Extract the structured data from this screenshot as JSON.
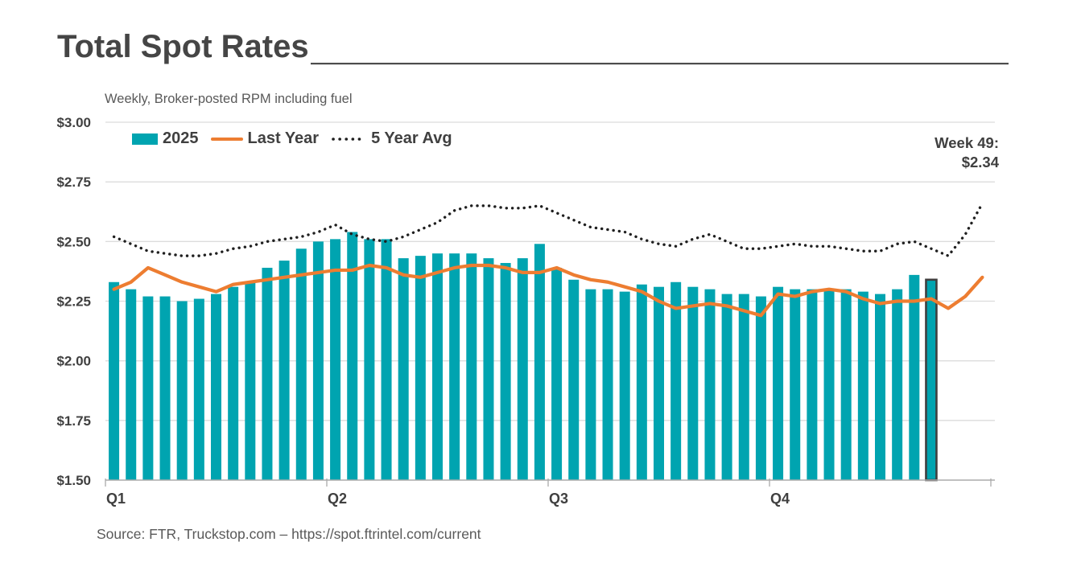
{
  "header": {
    "title": "Total Spot Rates"
  },
  "annotation": {
    "line1": "Week 49:",
    "line2": "$2.34"
  },
  "footer": {
    "source": "Source: FTR, Truckstop.com – https://spot.ftrintel.com/current"
  },
  "colors": {
    "bar_teal": "#00a4b0",
    "last_year_orange": "#ed7d31",
    "five_year_avg_black": "#1f1f1f",
    "highlight_border": "#3f3f3f",
    "grid": "#dcdcdc",
    "axis": "#ababab",
    "title_text": "#454545",
    "muted_text": "#595959"
  },
  "chart_data": {
    "type": "bar+line combo",
    "title": "Total Spot Rates",
    "subtitle": "Weekly, Broker-posted RPM including fuel",
    "legend_position": "top-left inside plot",
    "grid": "horizontal only",
    "x_axis": {
      "unit": "week",
      "weeks_total": 52,
      "tick_labels": [
        "Q1",
        "Q2",
        "Q3",
        "Q4"
      ],
      "quarter_boundary_weeks": [
        0,
        13,
        26,
        39,
        52
      ]
    },
    "y_axis": {
      "min": 1.5,
      "max": 3.0,
      "step": 0.25,
      "tick_values": [
        3.0,
        2.75,
        2.5,
        2.25,
        2.0,
        1.75,
        1.5
      ],
      "tick_labels": [
        "$3.00",
        "$2.75",
        "$2.50",
        "$2.25",
        "$2.00",
        "$1.75",
        "$1.50"
      ]
    },
    "series": [
      {
        "name": "2025",
        "type": "bar",
        "color_key": "bar_teal",
        "values": [
          2.33,
          2.3,
          2.27,
          2.27,
          2.25,
          2.26,
          2.28,
          2.31,
          2.33,
          2.39,
          2.42,
          2.47,
          2.5,
          2.51,
          2.54,
          2.51,
          2.51,
          2.43,
          2.44,
          2.45,
          2.45,
          2.45,
          2.43,
          2.41,
          2.43,
          2.49,
          2.39,
          2.34,
          2.3,
          2.3,
          2.29,
          2.32,
          2.31,
          2.33,
          2.31,
          2.3,
          2.28,
          2.28,
          2.27,
          2.31,
          2.3,
          2.3,
          2.3,
          2.3,
          2.29,
          2.28,
          2.3,
          2.36,
          2.34
        ]
      },
      {
        "name": "Last Year",
        "type": "line",
        "color_key": "last_year_orange",
        "values": [
          2.3,
          2.33,
          2.39,
          2.36,
          2.33,
          2.31,
          2.29,
          2.32,
          2.33,
          2.34,
          2.35,
          2.36,
          2.37,
          2.38,
          2.38,
          2.4,
          2.39,
          2.36,
          2.35,
          2.37,
          2.39,
          2.4,
          2.4,
          2.39,
          2.37,
          2.37,
          2.39,
          2.36,
          2.34,
          2.33,
          2.31,
          2.29,
          2.25,
          2.22,
          2.23,
          2.24,
          2.23,
          2.21,
          2.19,
          2.28,
          2.27,
          2.29,
          2.3,
          2.29,
          2.26,
          2.24,
          2.25,
          2.25,
          2.26,
          2.22,
          2.27,
          2.35
        ]
      },
      {
        "name": "5 Year Avg",
        "type": "dotted-line",
        "color_key": "five_year_avg_black",
        "values": [
          2.52,
          2.49,
          2.46,
          2.45,
          2.44,
          2.44,
          2.45,
          2.47,
          2.48,
          2.5,
          2.51,
          2.52,
          2.54,
          2.57,
          2.53,
          2.51,
          2.5,
          2.52,
          2.55,
          2.58,
          2.63,
          2.65,
          2.65,
          2.64,
          2.64,
          2.65,
          2.62,
          2.59,
          2.56,
          2.55,
          2.54,
          2.51,
          2.49,
          2.48,
          2.51,
          2.53,
          2.5,
          2.47,
          2.47,
          2.48,
          2.49,
          2.48,
          2.48,
          2.47,
          2.46,
          2.46,
          2.49,
          2.5,
          2.47,
          2.44,
          2.53,
          2.66
        ]
      }
    ],
    "highlight": {
      "week": 49,
      "value": 2.34,
      "note": "Week 49: $2.34"
    }
  }
}
